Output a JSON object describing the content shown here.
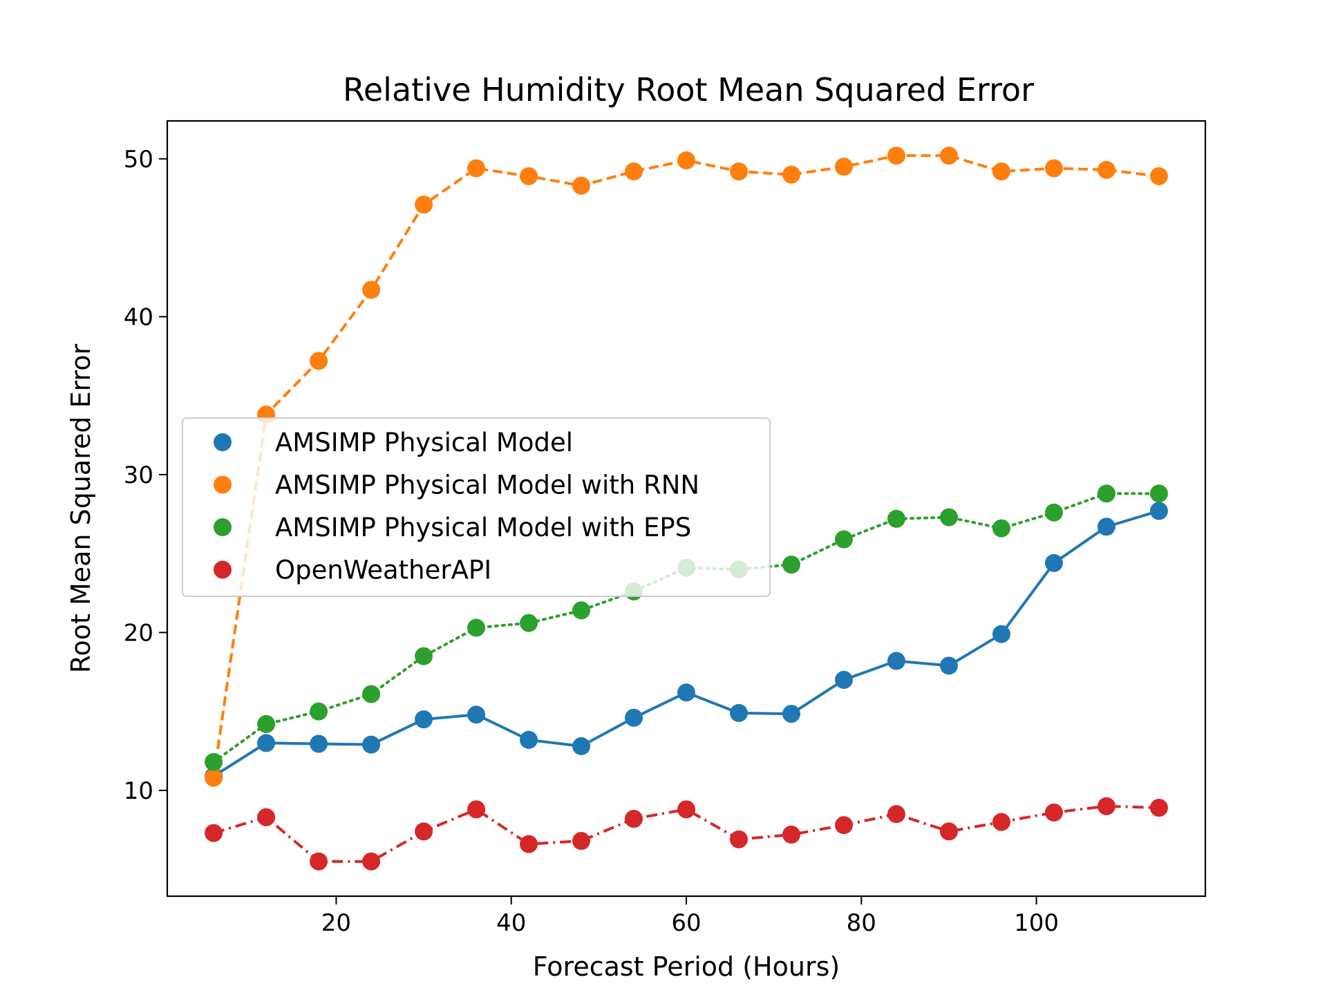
{
  "chart_data": {
    "type": "line",
    "title": "Relative Humidity Root Mean Squared Error",
    "xlabel": "Forecast Period (Hours)",
    "ylabel": "Root Mean Squared Error",
    "xlim": [
      0.7,
      119.3
    ],
    "ylim": [
      3.3,
      52.4
    ],
    "xticks": [
      20,
      40,
      60,
      80,
      100
    ],
    "yticks": [
      10,
      20,
      30,
      40,
      50
    ],
    "xtick_labels": [
      "20",
      "40",
      "60",
      "80",
      "100"
    ],
    "ytick_labels": [
      "10",
      "20",
      "30",
      "40",
      "50"
    ],
    "grid": false,
    "legend_position": "center-left",
    "x": [
      6,
      12,
      18,
      24,
      30,
      36,
      42,
      48,
      54,
      60,
      66,
      72,
      78,
      84,
      90,
      96,
      102,
      108,
      114
    ],
    "series": [
      {
        "name": "AMSIMP Physical Model",
        "color": "#1f77b4",
        "line_style": "solid",
        "values": [
          10.9,
          13.0,
          12.95,
          12.9,
          14.5,
          14.8,
          13.2,
          12.8,
          14.6,
          16.2,
          14.9,
          14.85,
          17.0,
          18.2,
          17.9,
          19.9,
          24.4,
          26.7,
          27.7
        ]
      },
      {
        "name": "AMSIMP Physical Model with RNN",
        "color": "#ff7f0e",
        "line_style": "dashed",
        "values": [
          10.8,
          33.8,
          37.2,
          41.7,
          47.1,
          49.4,
          48.9,
          48.3,
          49.2,
          49.9,
          49.2,
          49.0,
          49.5,
          50.2,
          50.2,
          49.2,
          49.4,
          49.3,
          48.9
        ]
      },
      {
        "name": "AMSIMP Physical Model with EPS",
        "color": "#2ca02c",
        "line_style": "dotted",
        "values": [
          11.8,
          14.2,
          15.0,
          16.1,
          18.5,
          20.3,
          20.6,
          21.4,
          22.6,
          24.1,
          24.0,
          24.3,
          25.9,
          27.2,
          27.3,
          26.6,
          27.6,
          28.8,
          28.8
        ]
      },
      {
        "name": "OpenWeatherAPI",
        "color": "#d62728",
        "line_style": "dashdot",
        "values": [
          7.3,
          8.3,
          5.5,
          5.5,
          7.4,
          8.8,
          6.6,
          6.8,
          8.2,
          8.8,
          6.9,
          7.2,
          7.8,
          8.5,
          7.4,
          8.0,
          8.6,
          9.0,
          8.9
        ]
      }
    ]
  }
}
